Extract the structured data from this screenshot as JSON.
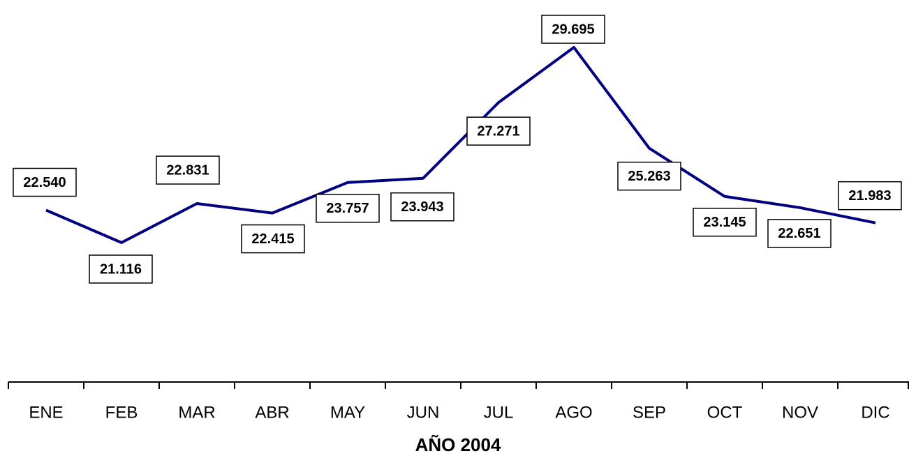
{
  "chart_data": {
    "type": "line",
    "x_label": "AÑO 2004",
    "categories": [
      "ENE",
      "FEB",
      "MAR",
      "ABR",
      "MAY",
      "JUN",
      "JUL",
      "AGO",
      "SEP",
      "OCT",
      "NOV",
      "DIC"
    ],
    "series": [
      {
        "name": null,
        "color": "#000080",
        "values": [
          22540,
          21116,
          22831,
          22415,
          23757,
          23943,
          27271,
          29695,
          25263,
          23145,
          22651,
          21983
        ],
        "value_labels": [
          "22.540",
          "21.116",
          "22.831",
          "22.415",
          "23.757",
          "23.943",
          "27.271",
          "29.695",
          "25.263",
          "23.145",
          "22.651",
          "21.983"
        ]
      }
    ]
  }
}
